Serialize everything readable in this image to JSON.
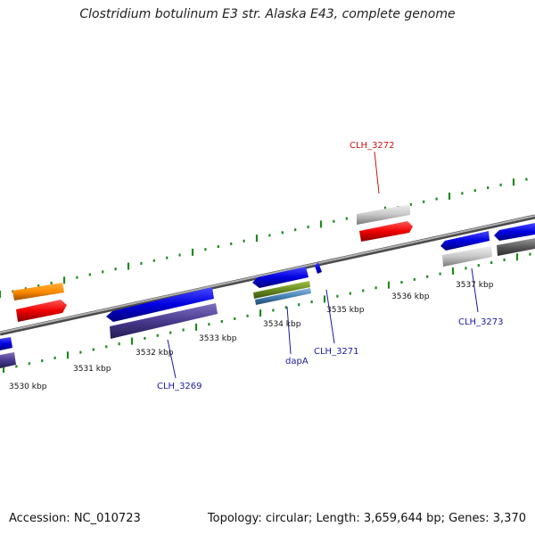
{
  "title": "Clostridium botulinum E3 str. Alaska E43, complete genome",
  "footer": {
    "accession": "Accession: NC_010723",
    "summary": "Topology: circular; Length: 3,659,644 bp; Genes: 3,370"
  },
  "colors": {
    "backbone": "#8a8a8a",
    "ticks": "#1e8a1e",
    "label_blue": "#1a1aa0",
    "label_red": "#cc1111"
  },
  "kbp_labels": [
    "3530 kbp",
    "3531 kbp",
    "3532 kbp",
    "3533 kbp",
    "3534 kbp",
    "3535 kbp",
    "3536 kbp",
    "3537 kbp"
  ],
  "gene_labels": [
    {
      "name": "CLH_3269",
      "color": "#1a1aa0"
    },
    {
      "name": "dapA",
      "color": "#1a1aa0"
    },
    {
      "name": "CLH_3271",
      "color": "#1a1aa0"
    },
    {
      "name": "CLH_3272",
      "color": "#cc1111"
    },
    {
      "name": "CLH_3273",
      "color": "#1a1aa0"
    }
  ]
}
